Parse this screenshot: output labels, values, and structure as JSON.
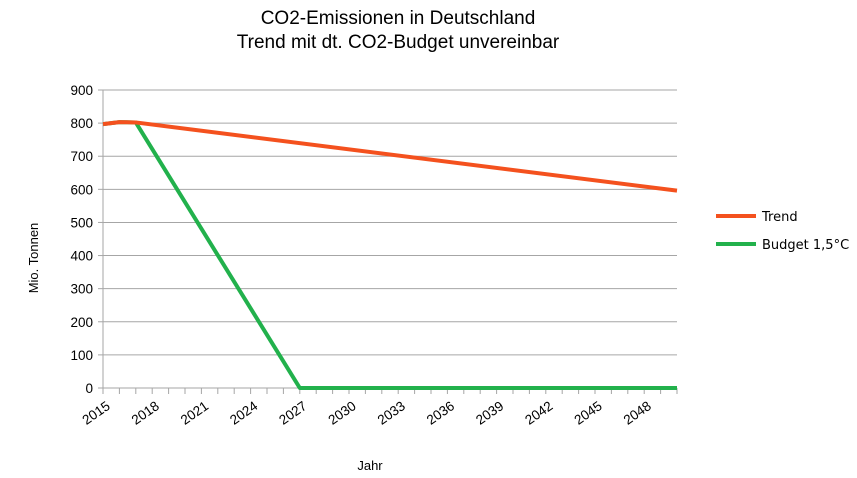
{
  "chart_data": {
    "type": "line",
    "title": "CO2-Emissionen in Deutschland",
    "subtitle": "Trend mit dt. CO2-Budget unvereinbar",
    "xlabel": "Jahr",
    "ylabel": "Mio. Tonnen",
    "xlim": [
      2015,
      2050
    ],
    "ylim": [
      0,
      900
    ],
    "x_ticks": [
      "2015",
      "2018",
      "2021",
      "2024",
      "2027",
      "2030",
      "2033",
      "2036",
      "2039",
      "2042",
      "2045",
      "2048"
    ],
    "y_ticks": [
      "0",
      "100",
      "200",
      "300",
      "400",
      "500",
      "600",
      "700",
      "800",
      "900"
    ],
    "grid": true,
    "legend_position": "right",
    "series": [
      {
        "name": "Trend",
        "color": "#f4511e",
        "points": [
          [
            2015,
            797
          ],
          [
            2016,
            803
          ],
          [
            2017,
            802
          ],
          [
            2050,
            596
          ]
        ]
      },
      {
        "name": "Budget 1,5°C",
        "color": "#22b14c",
        "points": [
          [
            2015,
            797
          ],
          [
            2016,
            803
          ],
          [
            2017,
            802
          ],
          [
            2027,
            0
          ],
          [
            2050,
            0
          ]
        ]
      }
    ]
  }
}
